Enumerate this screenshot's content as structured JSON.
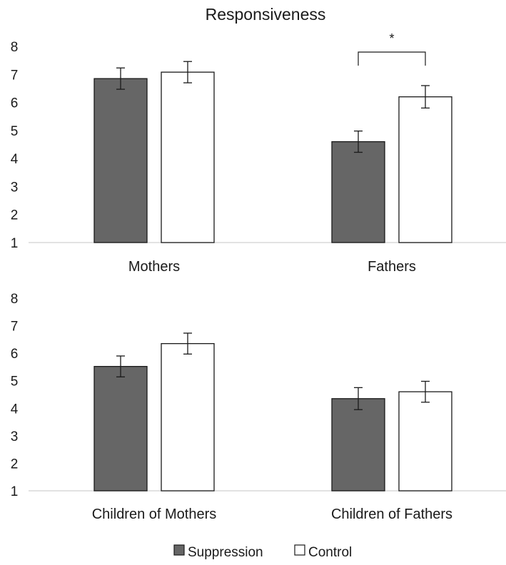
{
  "colors": {
    "suppression_fill": "#666666",
    "control_fill": "#ffffff",
    "bar_stroke": "#1a1a1a",
    "axis_line": "#d9d9d9",
    "text": "#1a1a1a"
  },
  "chart_data": [
    {
      "type": "bar",
      "title": "Responsiveness",
      "categories": [
        "Mothers",
        "Fathers"
      ],
      "series": [
        {
          "name": "Suppression",
          "values": [
            6.85,
            4.6
          ],
          "error": [
            0.38,
            0.38
          ]
        },
        {
          "name": "Control",
          "values": [
            7.08,
            6.2
          ],
          "error": [
            0.38,
            0.4
          ]
        }
      ],
      "ylim": [
        1,
        8
      ],
      "yticks": [
        "1",
        "2",
        "3",
        "4",
        "5",
        "6",
        "7",
        "8"
      ],
      "annotations": [
        {
          "text": "*",
          "category": "Fathers"
        }
      ],
      "xlabel": "",
      "ylabel": "",
      "grid": false
    },
    {
      "type": "bar",
      "title": "",
      "categories": [
        "Children of Mothers",
        "Children of Fathers"
      ],
      "series": [
        {
          "name": "Suppression",
          "values": [
            5.52,
            4.35
          ],
          "error": [
            0.38,
            0.4
          ]
        },
        {
          "name": "Control",
          "values": [
            6.35,
            4.6
          ],
          "error": [
            0.38,
            0.38
          ]
        }
      ],
      "ylim": [
        1,
        8
      ],
      "yticks": [
        "1",
        "2",
        "3",
        "4",
        "5",
        "6",
        "7",
        "8"
      ],
      "annotations": [],
      "xlabel": "",
      "ylabel": "",
      "grid": false
    }
  ],
  "legend": {
    "placement": "bottom",
    "items": [
      {
        "label": "Suppression",
        "color": "#666666"
      },
      {
        "label": "Control",
        "color": "#ffffff"
      }
    ]
  }
}
